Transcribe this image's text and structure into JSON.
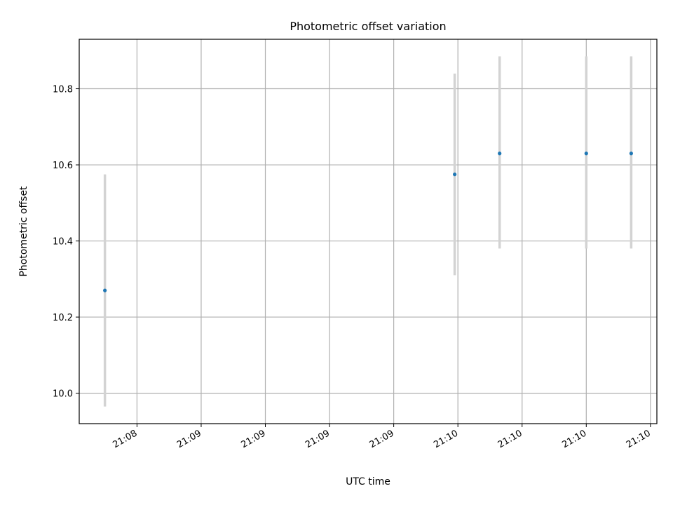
{
  "chart_data": {
    "type": "scatter",
    "title": "Photometric offset variation",
    "xlabel": "UTC time",
    "ylabel": "Photometric offset",
    "ylim": [
      9.92,
      10.93
    ],
    "xlim_seconds": [
      0,
      180
    ],
    "grid": true,
    "x_ticks": [
      {
        "seconds": 18,
        "label": "21:08"
      },
      {
        "seconds": 38,
        "label": "21:09"
      },
      {
        "seconds": 58,
        "label": "21:09"
      },
      {
        "seconds": 78,
        "label": "21:09"
      },
      {
        "seconds": 98,
        "label": "21:09"
      },
      {
        "seconds": 118,
        "label": "21:10"
      },
      {
        "seconds": 138,
        "label": "21:10"
      },
      {
        "seconds": 158,
        "label": "21:10"
      },
      {
        "seconds": 178,
        "label": "21:10"
      }
    ],
    "y_ticks": [
      10.0,
      10.2,
      10.4,
      10.6,
      10.8
    ],
    "y_tick_labels": [
      "10.0",
      "10.2",
      "10.4",
      "10.6",
      "10.8"
    ],
    "series": [
      {
        "points": [
          {
            "x_seconds": 8,
            "y": 10.27,
            "yerr_low": 9.965,
            "yerr_high": 10.575
          },
          {
            "x_seconds": 117,
            "y": 10.575,
            "yerr_low": 10.31,
            "yerr_high": 10.84
          },
          {
            "x_seconds": 131,
            "y": 10.63,
            "yerr_low": 10.38,
            "yerr_high": 10.885
          },
          {
            "x_seconds": 158,
            "y": 10.63,
            "yerr_low": 10.38,
            "yerr_high": 10.885
          },
          {
            "x_seconds": 172,
            "y": 10.63,
            "yerr_low": 10.38,
            "yerr_high": 10.885
          }
        ]
      }
    ],
    "colors": {
      "point": "#1f77b4",
      "errorbar": "#d3d3d3",
      "grid": "#b0b0b0",
      "axes": "#000000"
    }
  }
}
